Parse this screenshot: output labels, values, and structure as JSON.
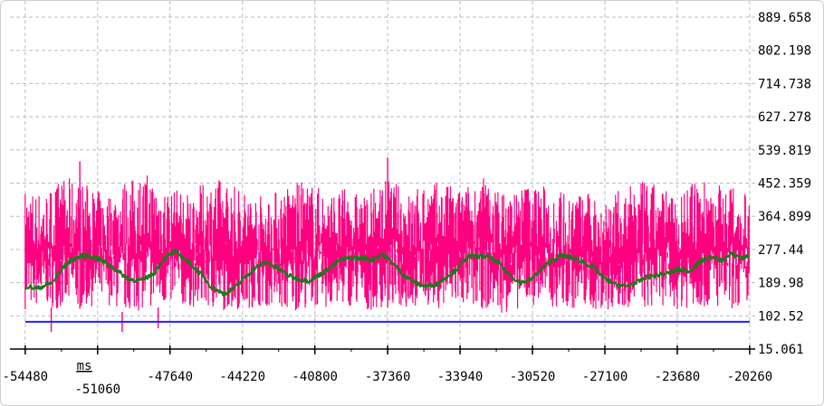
{
  "chart_data": {
    "type": "line",
    "title": "",
    "xlabel": "",
    "ylabel": "",
    "x_unit": "ms",
    "xlim": [
      -55200,
      -20000
    ],
    "ylim": [
      15.061,
      889.658
    ],
    "x_ticks": [
      -54480,
      -51060,
      -47640,
      -44220,
      -40800,
      -37360,
      -33940,
      -30520,
      -27100,
      -23680,
      -20260
    ],
    "y_ticks": [
      "15.061",
      "102.52",
      "189.98",
      "277.44",
      "364.899",
      "452.359",
      "539.819",
      "627.278",
      "714.738",
      "802.198",
      "889.658"
    ],
    "grid": true,
    "legend": "none",
    "colors": {
      "raw": "#ff0080",
      "smoothed": "#1a7a1a",
      "baseline": "#1f1fff",
      "grid": "#bbbbbb"
    },
    "series": [
      {
        "color": "#ff0080",
        "x": [
          -54480,
          -53600,
          -52600,
          -51500,
          -50700,
          -49800,
          -48700,
          -47640,
          -46700,
          -45500,
          -44220,
          -43200,
          -42100,
          -41200,
          -40100,
          -39300,
          -38400,
          -37360,
          -36400,
          -35500,
          -34500,
          -33940,
          -32800,
          -31900,
          -30520,
          -29600,
          -28500,
          -27100,
          -26100,
          -25200,
          -24300,
          -23680,
          -22400,
          -21300,
          -20260
        ],
        "low": [
          120,
          130,
          115,
          125,
          135,
          110,
          120,
          130,
          125,
          115,
          120,
          130,
          110,
          125,
          120,
          130,
          115,
          125,
          120,
          130,
          118,
          125,
          120,
          110,
          130,
          125,
          120,
          115,
          125,
          120,
          130,
          120,
          125,
          115,
          130
        ],
        "high": [
          440,
          430,
          470,
          450,
          420,
          460,
          480,
          440,
          430,
          470,
          440,
          420,
          450,
          460,
          430,
          440,
          420,
          470,
          430,
          460,
          450,
          440,
          470,
          430,
          460,
          440,
          430,
          420,
          440,
          460,
          440,
          430,
          470,
          450,
          420
        ],
        "spikes": [
          {
            "x": -51900,
            "y": 510
          },
          {
            "x": -37360,
            "y": 520
          },
          {
            "x": -49900,
            "y": 60
          },
          {
            "x": -53250,
            "y": 60
          },
          {
            "x": -48200,
            "y": 70
          }
        ]
      },
      {
        "color": "#1a7a1a",
        "x": [
          -54480,
          -53900,
          -53200,
          -52700,
          -52300,
          -51700,
          -51100,
          -50600,
          -50100,
          -49600,
          -49000,
          -48400,
          -47900,
          -47400,
          -46900,
          -46300,
          -45700,
          -45100,
          -44600,
          -44100,
          -43600,
          -43100,
          -42600,
          -42100,
          -41600,
          -41100,
          -40600,
          -40100,
          -39600,
          -39100,
          -38600,
          -38100,
          -37600,
          -37100,
          -36600,
          -36100,
          -35600,
          -35100,
          -34600,
          -34100,
          -33600,
          -33100,
          -32600,
          -32100,
          -31600,
          -31100,
          -30600,
          -30100,
          -29600,
          -29100,
          -28600,
          -28100,
          -27600,
          -27100,
          -26600,
          -26100,
          -25600,
          -25100,
          -24600,
          -24100,
          -23600,
          -23100,
          -22600,
          -22100,
          -21600,
          -21100,
          -20600,
          -20260
        ],
        "y": [
          180,
          175,
          190,
          230,
          250,
          262,
          255,
          240,
          220,
          200,
          195,
          215,
          255,
          272,
          250,
          220,
          180,
          160,
          175,
          205,
          230,
          245,
          230,
          210,
          200,
          195,
          210,
          228,
          250,
          255,
          255,
          250,
          265,
          240,
          210,
          190,
          180,
          185,
          205,
          225,
          258,
          260,
          258,
          240,
          210,
          190,
          198,
          225,
          250,
          262,
          255,
          245,
          228,
          200,
          185,
          180,
          190,
          205,
          210,
          215,
          225,
          220,
          245,
          258,
          248,
          265,
          255,
          260
        ],
        "range": [
          -20,
          25
        ]
      },
      {
        "color": "#1f1fff",
        "x": [
          -54480,
          -20260
        ],
        "y": [
          87,
          87
        ]
      }
    ]
  }
}
